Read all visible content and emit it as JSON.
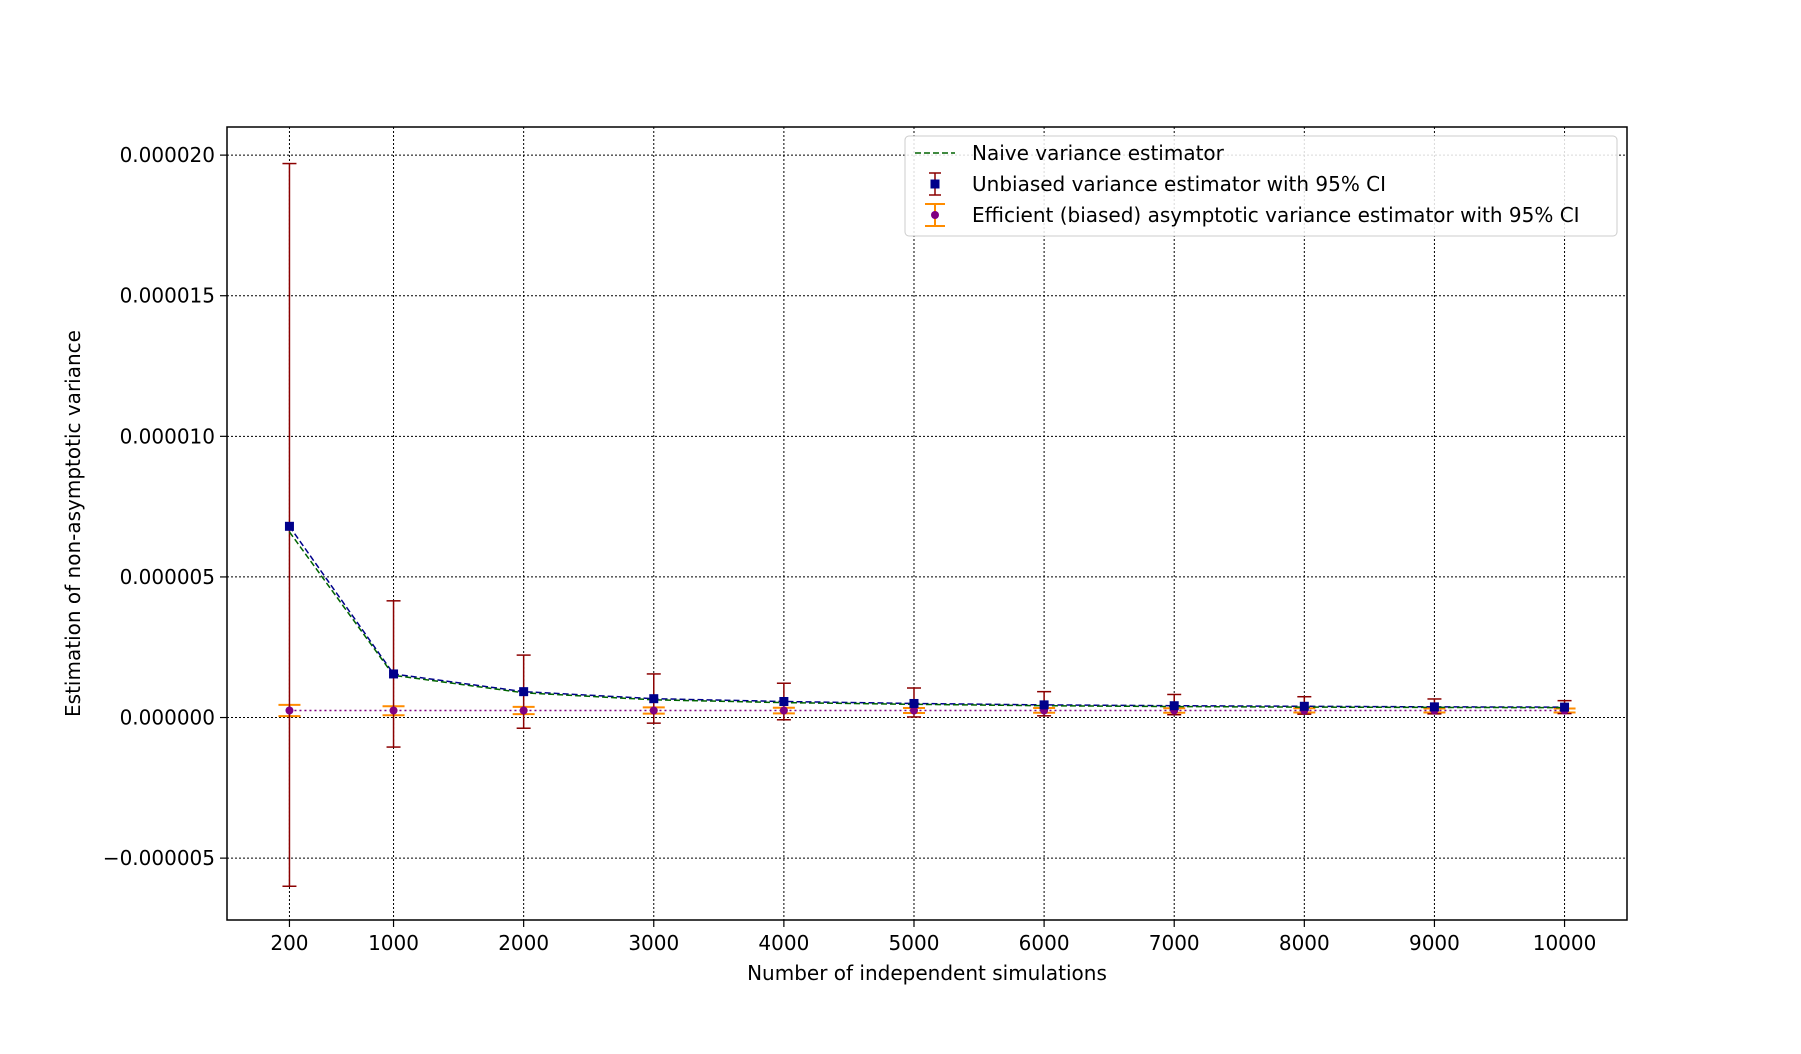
{
  "chart_data": {
    "type": "line",
    "xlabel": "Number of independent simulations",
    "ylabel": "Estimation of non-asymptotic variance",
    "x": [
      200,
      1000,
      2000,
      3000,
      4000,
      5000,
      6000,
      7000,
      8000,
      9000,
      10000
    ],
    "x_ticks": [
      200,
      1000,
      2000,
      3000,
      4000,
      5000,
      6000,
      7000,
      8000,
      9000,
      10000
    ],
    "x_tick_labels": [
      "200",
      "1000",
      "2000",
      "3000",
      "4000",
      "5000",
      "6000",
      "7000",
      "8000",
      "9000",
      "10000"
    ],
    "xlim": [
      -280,
      10480
    ],
    "y_ticks": [
      -5e-06,
      0.0,
      5e-06,
      1e-05,
      1.5e-05,
      2e-05
    ],
    "y_tick_labels": [
      "−0.000005",
      "0.000000",
      "0.000005",
      "0.000010",
      "0.000015",
      "0.000020"
    ],
    "ylim": [
      -7.2e-06,
      2.1e-05
    ],
    "grid": true,
    "legend_position": "top-right",
    "series": [
      {
        "name": "Naive variance estimator",
        "style": "dashed-line",
        "color": "#006400",
        "values": [
          6.6e-06,
          1.5e-06,
          8.8e-07,
          6.3e-07,
          5.3e-07,
          4.7e-07,
          4.2e-07,
          3.9e-07,
          3.7e-07,
          3.6e-07,
          3.5e-07
        ]
      },
      {
        "name": "Unbiased variance estimator with 95% CI",
        "style": "square-markers-with-errorbars",
        "color": "#00008b",
        "errorbar_color": "#8b0000",
        "values": [
          6.8e-06,
          1.55e-06,
          9.2e-07,
          6.7e-07,
          5.7e-07,
          5e-07,
          4.5e-07,
          4.2e-07,
          4e-07,
          3.8e-07,
          3.7e-07
        ],
        "ci_lower": [
          -6e-06,
          -1.05e-06,
          -3.8e-07,
          -2e-07,
          -8e-08,
          2e-08,
          6e-08,
          1e-07,
          1.2e-07,
          1.3e-07,
          1.4e-07
        ],
        "ci_upper": [
          1.97e-05,
          4.15e-06,
          2.22e-06,
          1.55e-06,
          1.22e-06,
          1.05e-06,
          9.2e-07,
          8.2e-07,
          7.4e-07,
          6.6e-07,
          6e-07
        ]
      },
      {
        "name": "Efficient (biased) asymptotic variance estimator with 95% CI",
        "style": "circle-markers-with-errorbars-dotted-line",
        "color": "#800080",
        "errorbar_color": "#ff8c00",
        "values": [
          2.5e-07,
          2.5e-07,
          2.5e-07,
          2.5e-07,
          2.5e-07,
          2.5e-07,
          2.5e-07,
          2.5e-07,
          2.5e-07,
          2.5e-07,
          2.5e-07
        ],
        "ci_lower": [
          5e-08,
          8e-08,
          1.2e-07,
          1.4e-07,
          1.5e-07,
          1.6e-07,
          1.7e-07,
          1.7e-07,
          1.8e-07,
          1.8e-07,
          1.8e-07
        ],
        "ci_upper": [
          4.5e-07,
          4e-07,
          3.8e-07,
          3.6e-07,
          3.5e-07,
          3.4e-07,
          3.4e-07,
          3.3e-07,
          3.3e-07,
          3.2e-07,
          3.2e-07
        ]
      }
    ]
  }
}
